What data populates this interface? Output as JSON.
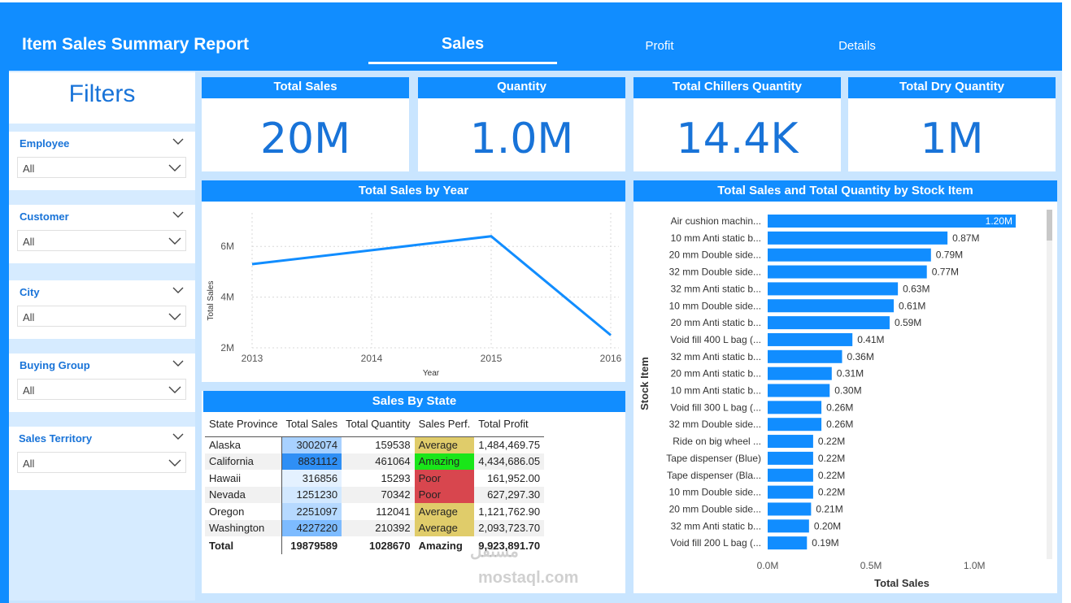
{
  "header": {
    "title": "Item Sales Summary Report",
    "tabs": [
      {
        "label": "Sales",
        "active": true
      },
      {
        "label": "Profit",
        "active": false
      },
      {
        "label": "Details",
        "active": false
      }
    ]
  },
  "filters": {
    "title": "Filters",
    "slicers": [
      {
        "label": "Employee",
        "value": "All"
      },
      {
        "label": "Customer",
        "value": "All"
      },
      {
        "label": "City",
        "value": "All"
      },
      {
        "label": "Buying Group",
        "value": "All"
      },
      {
        "label": "Sales Territory",
        "value": "All"
      }
    ]
  },
  "cards": [
    {
      "title": "Total Sales",
      "value": "20M"
    },
    {
      "title": "Quantity",
      "value": "1.0M"
    },
    {
      "title": "Total Chillers Quantity",
      "value": "14.4K"
    },
    {
      "title": "Total Dry Quantity",
      "value": "1M"
    }
  ],
  "chart_data": [
    {
      "type": "line",
      "title": "Total Sales by Year",
      "xlabel": "Year",
      "ylabel": "Total Sales",
      "x": [
        "2013",
        "2014",
        "2015",
        "2016"
      ],
      "series": [
        {
          "values": [
            5300000,
            5850000,
            6400000,
            2500000
          ]
        }
      ],
      "ylim": [
        2000000,
        7000000
      ],
      "yticks": [
        "2M",
        "4M",
        "6M"
      ],
      "grid": true
    },
    {
      "type": "bar",
      "orientation": "horizontal",
      "title": "Total Sales and Total Quantity by Stock Item",
      "xlabel": "Total Sales",
      "ylabel": "Stock Item",
      "categories": [
        "Air cushion machin...",
        "10 mm Anti static b...",
        "20 mm Double side...",
        "32 mm Double side...",
        "32 mm Anti static b...",
        "10 mm Double side...",
        "20 mm Anti static b...",
        "Void fill 400 L bag (...",
        "32 mm Anti static b...",
        "20 mm Anti static b...",
        "10 mm Anti static b...",
        "Void fill 300 L bag (...",
        "32 mm Double side...",
        "Ride on big wheel ...",
        "Tape dispenser (Blue)",
        "Tape dispenser (Bla...",
        "10 mm Double side...",
        "20 mm Double side...",
        "32 mm Anti static b...",
        "Void fill 200 L bag (..."
      ],
      "values": [
        1.2,
        0.87,
        0.79,
        0.77,
        0.63,
        0.61,
        0.59,
        0.41,
        0.36,
        0.31,
        0.3,
        0.26,
        0.26,
        0.22,
        0.22,
        0.22,
        0.22,
        0.21,
        0.2,
        0.19
      ],
      "data_labels": [
        "1.20M",
        "0.87M",
        "0.79M",
        "0.77M",
        "0.63M",
        "0.61M",
        "0.59M",
        "0.41M",
        "0.36M",
        "0.31M",
        "0.30M",
        "0.26M",
        "0.26M",
        "0.22M",
        "0.22M",
        "0.22M",
        "0.22M",
        "0.21M",
        "0.20M",
        "0.19M"
      ],
      "xticks": [
        "0.0M",
        "0.5M",
        "1.0M"
      ],
      "xlim": [
        0,
        1.25
      ]
    }
  ],
  "sales_by_state": {
    "title": "Sales By State",
    "columns": [
      "State Province",
      "Total Sales",
      "Total Quantity",
      "Sales Perf.",
      "Total Profit"
    ],
    "rows": [
      {
        "state": "Alaska",
        "sales": "3002074",
        "quantity": "159538",
        "perf": "Average",
        "profit": "1,484,469.75",
        "sales_color": "#A8D1FF",
        "perf_color": "#E0CC6A"
      },
      {
        "state": "California",
        "sales": "8831112",
        "quantity": "461064",
        "perf": "Amazing",
        "profit": "4,434,686.05",
        "sales_color": "#2F8FF5",
        "perf_color": "#19E619"
      },
      {
        "state": "Hawaii",
        "sales": "316856",
        "quantity": "15293",
        "perf": "Poor",
        "profit": "161,952.00",
        "sales_color": "#E4F1FF",
        "perf_color": "#D8464E"
      },
      {
        "state": "Nevada",
        "sales": "1251230",
        "quantity": "70342",
        "perf": "Poor",
        "profit": "627,297.30",
        "sales_color": "#D2E8FF",
        "perf_color": "#D8464E"
      },
      {
        "state": "Oregon",
        "sales": "2251097",
        "quantity": "112041",
        "perf": "Average",
        "profit": "1,121,762.90",
        "sales_color": "#B6D9FF",
        "perf_color": "#E0CC6A"
      },
      {
        "state": "Washington",
        "sales": "4227220",
        "quantity": "210392",
        "perf": "Average",
        "profit": "2,093,723.70",
        "sales_color": "#7DBBFF",
        "perf_color": "#E0CC6A"
      }
    ],
    "total": {
      "label": "Total",
      "sales": "19879589",
      "quantity": "1028670",
      "perf": "Amazing",
      "profit": "9,923,891.70"
    }
  },
  "watermark": {
    "arabic": "مستقل",
    "latin": "mostaql.com"
  },
  "colors": {
    "accent": "#118DFF",
    "background": "#C9E5FF",
    "kpi_text": "#1873D8"
  }
}
